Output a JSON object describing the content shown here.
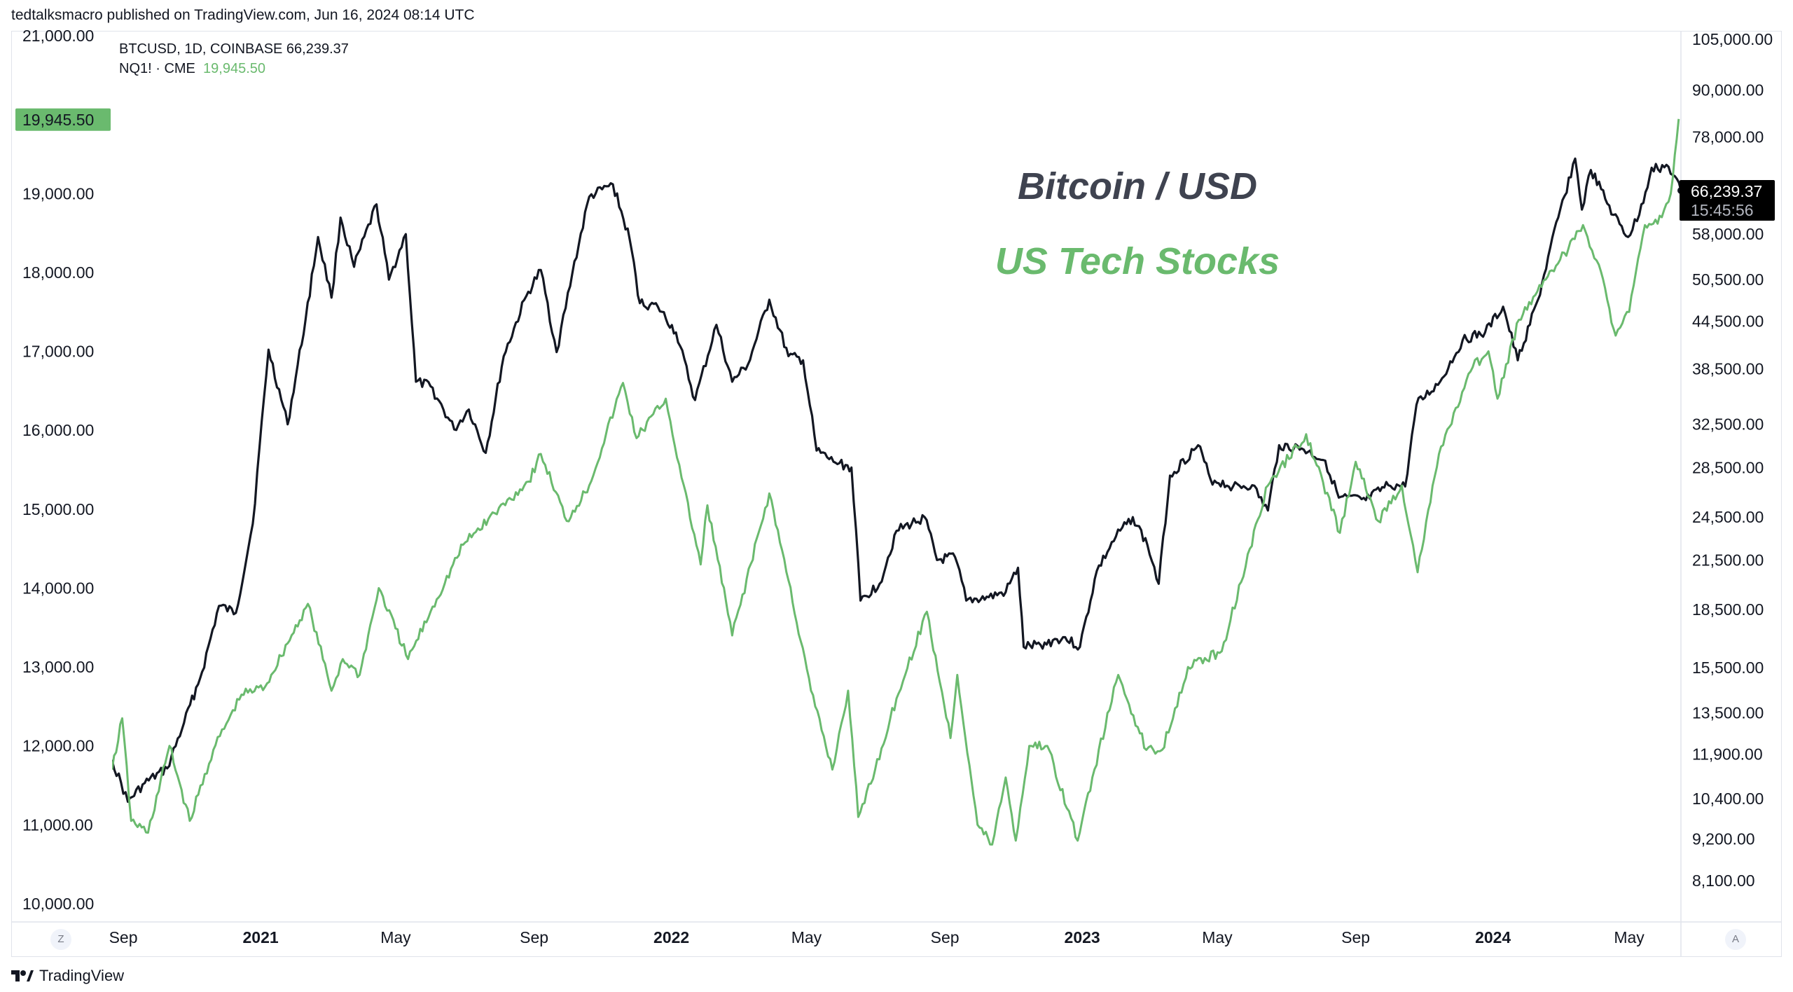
{
  "header": {
    "text": "tedtalksmacro published on TradingView.com, Jun 16, 2024 08:14 UTC"
  },
  "legend": {
    "line1": "BTCUSD, 1D, COINBASE  66,239.37",
    "line2_name": "NQ1! · CME",
    "line2_value": "19,945.50"
  },
  "footer": {
    "brand": "TradingView",
    "logo": "tv-logo"
  },
  "buttons": {
    "left": "Z",
    "right": "A"
  },
  "colors": {
    "btc": "#131722",
    "nq": "#6aba6e",
    "grid": "#f0f3fa",
    "border": "#e0e3eb"
  },
  "chart_data": {
    "type": "line",
    "annotations": [
      {
        "text": "Bitcoin / USD",
        "color": "#3f4350"
      },
      {
        "text": "US Tech Stocks",
        "color": "#6aba6e"
      }
    ],
    "x_ticks": [
      "Sep",
      "2021",
      "May",
      "Sep",
      "2022",
      "May",
      "Sep",
      "2023",
      "May",
      "Sep",
      "2024",
      "May"
    ],
    "x_tick_dates": [
      "2020-09-01",
      "2021-01-01",
      "2021-05-01",
      "2021-09-01",
      "2022-01-01",
      "2022-05-01",
      "2022-09-01",
      "2023-01-01",
      "2023-05-01",
      "2023-09-01",
      "2024-01-01",
      "2024-05-01"
    ],
    "x_range": [
      "2020-08-22",
      "2024-06-16"
    ],
    "left_axis": {
      "series": "NQ1! · CME",
      "ticks": [
        "21,000.00",
        "19,000.00",
        "18,000.00",
        "17,000.00",
        "16,000.00",
        "15,000.00",
        "14,000.00",
        "13,000.00",
        "12,000.00",
        "11,000.00",
        "10,000.00"
      ],
      "tick_values": [
        21000,
        19000,
        18000,
        17000,
        16000,
        15000,
        14000,
        13000,
        12000,
        11000,
        10000
      ],
      "range": [
        9960,
        21040
      ],
      "scale": "linear",
      "last_value_label": "19,945.50",
      "last_value": 19945.5
    },
    "right_axis": {
      "series": "BTCUSD, 1D, COINBASE",
      "ticks": [
        "105,000.00",
        "90,000.00",
        "78,000.00",
        "58,000.00",
        "50,500.00",
        "44,500.00",
        "38,500.00",
        "32,500.00",
        "28,500.00",
        "24,500.00",
        "21,500.00",
        "18,500.00",
        "15,500.00",
        "13,500.00",
        "11,900.00",
        "10,400.00",
        "9,200.00",
        "8,100.00"
      ],
      "tick_values": [
        105000,
        90000,
        78000,
        58000,
        50500,
        44500,
        38500,
        32500,
        28500,
        24500,
        21500,
        18500,
        15500,
        13500,
        11900,
        10400,
        9200,
        8100
      ],
      "scale": "log",
      "last_value_label": "66,239.37",
      "countdown_label": "15:45:56",
      "last_value": 66239.37
    },
    "series": [
      {
        "name": "BTCUSD, 1D, COINBASE",
        "axis": "right",
        "color": "#131722",
        "points": [
          [
            "2020-08-22",
            11700
          ],
          [
            "2020-09-05",
            10300
          ],
          [
            "2020-09-20",
            10900
          ],
          [
            "2020-10-10",
            11400
          ],
          [
            "2020-10-25",
            13100
          ],
          [
            "2020-11-10",
            15300
          ],
          [
            "2020-11-25",
            18700
          ],
          [
            "2020-12-10",
            18300
          ],
          [
            "2020-12-25",
            24000
          ],
          [
            "2021-01-08",
            40800
          ],
          [
            "2021-01-25",
            32500
          ],
          [
            "2021-02-10",
            44800
          ],
          [
            "2021-02-21",
            57500
          ],
          [
            "2021-03-05",
            47800
          ],
          [
            "2021-03-13",
            61000
          ],
          [
            "2021-03-25",
            52500
          ],
          [
            "2021-04-14",
            63500
          ],
          [
            "2021-04-25",
            50500
          ],
          [
            "2021-05-10",
            58000
          ],
          [
            "2021-05-19",
            37000
          ],
          [
            "2021-06-01",
            36500
          ],
          [
            "2021-06-22",
            32000
          ],
          [
            "2021-07-05",
            34000
          ],
          [
            "2021-07-20",
            29800
          ],
          [
            "2021-08-05",
            40000
          ],
          [
            "2021-08-25",
            48000
          ],
          [
            "2021-09-07",
            52000
          ],
          [
            "2021-09-21",
            40500
          ],
          [
            "2021-10-05",
            51500
          ],
          [
            "2021-10-20",
            65000
          ],
          [
            "2021-11-10",
            67500
          ],
          [
            "2021-11-25",
            57000
          ],
          [
            "2021-12-04",
            47000
          ],
          [
            "2021-12-20",
            46500
          ],
          [
            "2022-01-05",
            43000
          ],
          [
            "2022-01-22",
            35000
          ],
          [
            "2022-02-10",
            44000
          ],
          [
            "2022-02-24",
            37000
          ],
          [
            "2022-03-10",
            39000
          ],
          [
            "2022-03-29",
            47500
          ],
          [
            "2022-04-15",
            40000
          ],
          [
            "2022-04-28",
            39500
          ],
          [
            "2022-05-10",
            30000
          ],
          [
            "2022-05-25",
            29000
          ],
          [
            "2022-06-10",
            28500
          ],
          [
            "2022-06-18",
            19000
          ],
          [
            "2022-07-05",
            20000
          ],
          [
            "2022-07-20",
            23500
          ],
          [
            "2022-08-14",
            24500
          ],
          [
            "2022-08-25",
            21500
          ],
          [
            "2022-09-10",
            21700
          ],
          [
            "2022-09-20",
            19000
          ],
          [
            "2022-10-10",
            19200
          ],
          [
            "2022-10-25",
            19500
          ],
          [
            "2022-11-05",
            21000
          ],
          [
            "2022-11-10",
            16500
          ],
          [
            "2022-11-25",
            16600
          ],
          [
            "2022-12-15",
            17000
          ],
          [
            "2022-12-30",
            16500
          ],
          [
            "2023-01-14",
            20800
          ],
          [
            "2023-01-31",
            23100
          ],
          [
            "2023-02-15",
            24500
          ],
          [
            "2023-02-28",
            22500
          ],
          [
            "2023-03-10",
            20000
          ],
          [
            "2023-03-20",
            27800
          ],
          [
            "2023-04-14",
            30500
          ],
          [
            "2023-04-25",
            27500
          ],
          [
            "2023-05-15",
            26900
          ],
          [
            "2023-06-01",
            27000
          ],
          [
            "2023-06-15",
            25000
          ],
          [
            "2023-06-25",
            30500
          ],
          [
            "2023-07-15",
            30200
          ],
          [
            "2023-08-05",
            29100
          ],
          [
            "2023-08-17",
            26000
          ],
          [
            "2023-09-10",
            25800
          ],
          [
            "2023-09-30",
            27000
          ],
          [
            "2023-10-15",
            26900
          ],
          [
            "2023-10-25",
            34500
          ],
          [
            "2023-11-15",
            37000
          ],
          [
            "2023-12-05",
            42000
          ],
          [
            "2023-12-25",
            43000
          ],
          [
            "2024-01-10",
            46500
          ],
          [
            "2024-01-23",
            39500
          ],
          [
            "2024-02-10",
            47500
          ],
          [
            "2024-02-28",
            61000
          ],
          [
            "2024-03-14",
            73000
          ],
          [
            "2024-03-20",
            62500
          ],
          [
            "2024-03-28",
            70500
          ],
          [
            "2024-04-17",
            61500
          ],
          [
            "2024-04-30",
            57500
          ],
          [
            "2024-05-10",
            61500
          ],
          [
            "2024-05-21",
            71000
          ],
          [
            "2024-06-05",
            71200
          ],
          [
            "2024-06-16",
            66239
          ]
        ]
      },
      {
        "name": "NQ1! · CME",
        "axis": "left",
        "color": "#6aba6e",
        "points": [
          [
            "2020-08-22",
            11700
          ],
          [
            "2020-08-31",
            12350
          ],
          [
            "2020-09-08",
            11050
          ],
          [
            "2020-09-23",
            10900
          ],
          [
            "2020-10-12",
            12000
          ],
          [
            "2020-10-30",
            11050
          ],
          [
            "2020-11-20",
            11950
          ],
          [
            "2020-12-15",
            12650
          ],
          [
            "2021-01-05",
            12750
          ],
          [
            "2021-01-25",
            13300
          ],
          [
            "2021-02-12",
            13800
          ],
          [
            "2021-03-05",
            12700
          ],
          [
            "2021-03-15",
            13100
          ],
          [
            "2021-03-30",
            12900
          ],
          [
            "2021-04-16",
            14000
          ],
          [
            "2021-05-12",
            13100
          ],
          [
            "2021-06-01",
            13700
          ],
          [
            "2021-06-30",
            14550
          ],
          [
            "2021-07-28",
            14950
          ],
          [
            "2021-08-27",
            15350
          ],
          [
            "2021-09-07",
            15700
          ],
          [
            "2021-09-30",
            14850
          ],
          [
            "2021-10-20",
            15300
          ],
          [
            "2021-11-19",
            16600
          ],
          [
            "2021-12-01",
            15900
          ],
          [
            "2021-12-27",
            16400
          ],
          [
            "2022-01-10",
            15400
          ],
          [
            "2022-01-27",
            14300
          ],
          [
            "2022-02-02",
            15050
          ],
          [
            "2022-02-24",
            13400
          ],
          [
            "2022-03-29",
            15200
          ],
          [
            "2022-04-15",
            14100
          ],
          [
            "2022-05-05",
            12700
          ],
          [
            "2022-05-24",
            11700
          ],
          [
            "2022-06-07",
            12700
          ],
          [
            "2022-06-16",
            11100
          ],
          [
            "2022-07-01",
            11700
          ],
          [
            "2022-07-20",
            12600
          ],
          [
            "2022-08-16",
            13700
          ],
          [
            "2022-09-06",
            12100
          ],
          [
            "2022-09-12",
            12900
          ],
          [
            "2022-09-30",
            11000
          ],
          [
            "2022-10-13",
            10750
          ],
          [
            "2022-10-25",
            11600
          ],
          [
            "2022-11-03",
            10800
          ],
          [
            "2022-11-15",
            12000
          ],
          [
            "2022-12-01",
            12000
          ],
          [
            "2022-12-28",
            10800
          ],
          [
            "2023-01-10",
            11600
          ],
          [
            "2023-02-02",
            12900
          ],
          [
            "2023-02-27",
            11950
          ],
          [
            "2023-03-13",
            11950
          ],
          [
            "2023-04-05",
            13000
          ],
          [
            "2023-05-05",
            13200
          ],
          [
            "2023-05-30",
            14500
          ],
          [
            "2023-06-15",
            15300
          ],
          [
            "2023-07-19",
            15950
          ],
          [
            "2023-08-18",
            14700
          ],
          [
            "2023-09-01",
            15600
          ],
          [
            "2023-09-21",
            14850
          ],
          [
            "2023-10-12",
            15300
          ],
          [
            "2023-10-26",
            14200
          ],
          [
            "2023-11-14",
            15700
          ],
          [
            "2023-12-14",
            16800
          ],
          [
            "2023-12-28",
            17000
          ],
          [
            "2024-01-05",
            16400
          ],
          [
            "2024-01-24",
            17400
          ],
          [
            "2024-02-15",
            17900
          ],
          [
            "2024-03-08",
            18300
          ],
          [
            "2024-03-21",
            18600
          ],
          [
            "2024-04-04",
            18100
          ],
          [
            "2024-04-19",
            17200
          ],
          [
            "2024-05-01",
            17500
          ],
          [
            "2024-05-15",
            18600
          ],
          [
            "2024-05-30",
            18700
          ],
          [
            "2024-06-07",
            19000
          ],
          [
            "2024-06-14",
            19945.5
          ]
        ]
      }
    ]
  }
}
